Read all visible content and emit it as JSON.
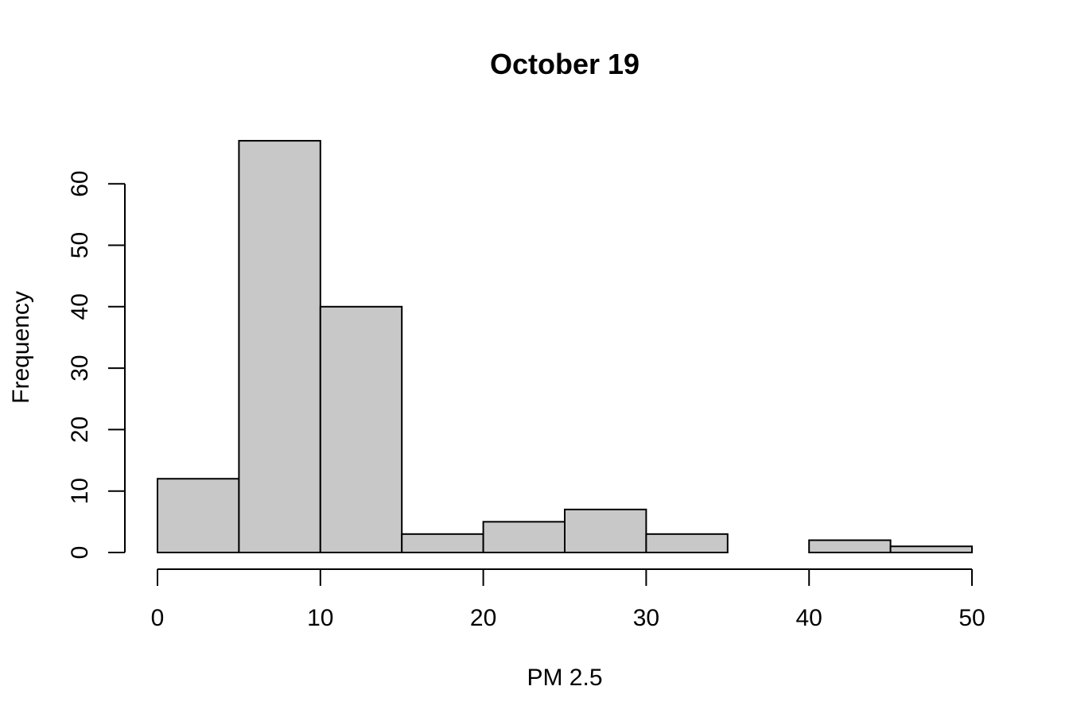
{
  "chart_data": {
    "type": "bar",
    "histogram": true,
    "title": "October 19",
    "xlabel": "PM 2.5",
    "ylabel": "Frequency",
    "bins": [
      {
        "start": 0,
        "end": 5,
        "count": 12
      },
      {
        "start": 5,
        "end": 10,
        "count": 67
      },
      {
        "start": 10,
        "end": 15,
        "count": 40
      },
      {
        "start": 15,
        "end": 20,
        "count": 3
      },
      {
        "start": 20,
        "end": 25,
        "count": 5
      },
      {
        "start": 25,
        "end": 30,
        "count": 7
      },
      {
        "start": 30,
        "end": 35,
        "count": 3
      },
      {
        "start": 35,
        "end": 40,
        "count": 0
      },
      {
        "start": 40,
        "end": 45,
        "count": 2
      },
      {
        "start": 45,
        "end": 50,
        "count": 1
      }
    ],
    "xlim": [
      0,
      50
    ],
    "x_ticks": [
      0,
      10,
      20,
      30,
      40,
      50
    ],
    "ylim": [
      0,
      67
    ],
    "y_ticks": [
      0,
      10,
      20,
      30,
      40,
      50,
      60
    ],
    "grid": false,
    "bar_color": "#c8c8c8",
    "border_color": "#000000"
  }
}
